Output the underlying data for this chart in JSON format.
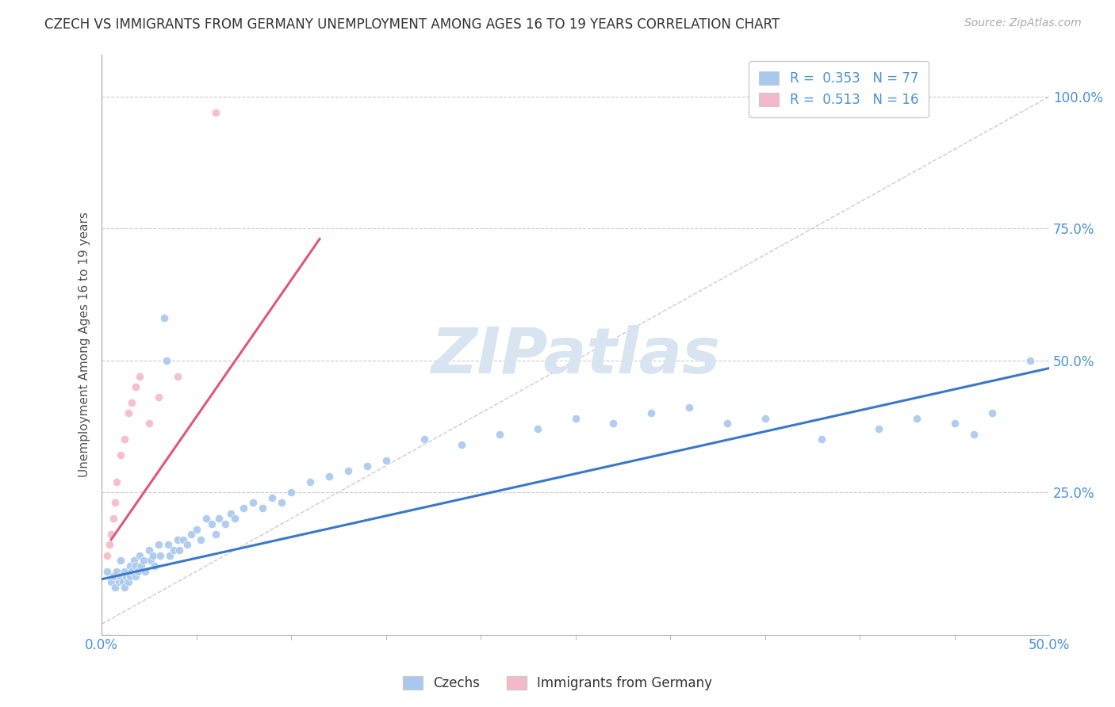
{
  "title": "CZECH VS IMMIGRANTS FROM GERMANY UNEMPLOYMENT AMONG AGES 16 TO 19 YEARS CORRELATION CHART",
  "source_text": "Source: ZipAtlas.com",
  "ylabel": "Unemployment Among Ages 16 to 19 years",
  "xlim": [
    0.0,
    0.5
  ],
  "ylim": [
    -0.02,
    1.08
  ],
  "xticks": [
    0.0,
    0.5
  ],
  "xticklabels": [
    "0.0%",
    "50.0%"
  ],
  "yticks": [
    0.25,
    0.5,
    0.75,
    1.0
  ],
  "yticklabels": [
    "25.0%",
    "50.0%",
    "75.0%",
    "100.0%"
  ],
  "blue_color": "#A8C8EE",
  "pink_color": "#F4B8C8",
  "blue_line_color": "#3A78C9",
  "pink_line_color": "#E05878",
  "axis_label_color": "#4A90D9",
  "grid_color": "#CCCCCC",
  "watermark_color": "#D8E4F0",
  "legend_entry1": "R =  0.353   N = 77",
  "legend_entry2": "R =  0.513   N = 16",
  "blue_trend_x": [
    0.0,
    0.5
  ],
  "blue_trend_y": [
    0.085,
    0.485
  ],
  "pink_trend_x": [
    0.005,
    0.115
  ],
  "pink_trend_y": [
    0.16,
    0.73
  ],
  "ref_line_x": [
    0.0,
    0.5
  ],
  "ref_line_y": [
    0.0,
    1.0
  ],
  "blue_scatter_x": [
    0.003,
    0.005,
    0.006,
    0.007,
    0.008,
    0.009,
    0.01,
    0.01,
    0.011,
    0.012,
    0.012,
    0.013,
    0.014,
    0.015,
    0.015,
    0.016,
    0.017,
    0.018,
    0.018,
    0.019,
    0.02,
    0.021,
    0.022,
    0.023,
    0.025,
    0.026,
    0.027,
    0.028,
    0.03,
    0.031,
    0.033,
    0.034,
    0.035,
    0.036,
    0.038,
    0.04,
    0.041,
    0.043,
    0.045,
    0.047,
    0.05,
    0.052,
    0.055,
    0.058,
    0.06,
    0.062,
    0.065,
    0.068,
    0.07,
    0.075,
    0.08,
    0.085,
    0.09,
    0.095,
    0.1,
    0.11,
    0.12,
    0.13,
    0.14,
    0.15,
    0.17,
    0.19,
    0.21,
    0.23,
    0.25,
    0.27,
    0.29,
    0.31,
    0.33,
    0.35,
    0.38,
    0.41,
    0.43,
    0.45,
    0.46,
    0.47,
    0.49
  ],
  "blue_scatter_y": [
    0.1,
    0.08,
    0.09,
    0.07,
    0.1,
    0.08,
    0.09,
    0.12,
    0.08,
    0.07,
    0.1,
    0.09,
    0.08,
    0.11,
    0.09,
    0.1,
    0.12,
    0.09,
    0.11,
    0.1,
    0.13,
    0.11,
    0.12,
    0.1,
    0.14,
    0.12,
    0.13,
    0.11,
    0.15,
    0.13,
    0.58,
    0.5,
    0.15,
    0.13,
    0.14,
    0.16,
    0.14,
    0.16,
    0.15,
    0.17,
    0.18,
    0.16,
    0.2,
    0.19,
    0.17,
    0.2,
    0.19,
    0.21,
    0.2,
    0.22,
    0.23,
    0.22,
    0.24,
    0.23,
    0.25,
    0.27,
    0.28,
    0.29,
    0.3,
    0.31,
    0.35,
    0.34,
    0.36,
    0.37,
    0.39,
    0.38,
    0.4,
    0.41,
    0.38,
    0.39,
    0.35,
    0.37,
    0.39,
    0.38,
    0.36,
    0.4,
    0.5
  ],
  "pink_scatter_x": [
    0.003,
    0.004,
    0.005,
    0.006,
    0.007,
    0.008,
    0.01,
    0.012,
    0.014,
    0.016,
    0.018,
    0.02,
    0.025,
    0.03,
    0.04,
    0.06
  ],
  "pink_scatter_y": [
    0.13,
    0.15,
    0.17,
    0.2,
    0.23,
    0.27,
    0.32,
    0.35,
    0.4,
    0.42,
    0.45,
    0.47,
    0.38,
    0.43,
    0.47,
    0.97
  ]
}
